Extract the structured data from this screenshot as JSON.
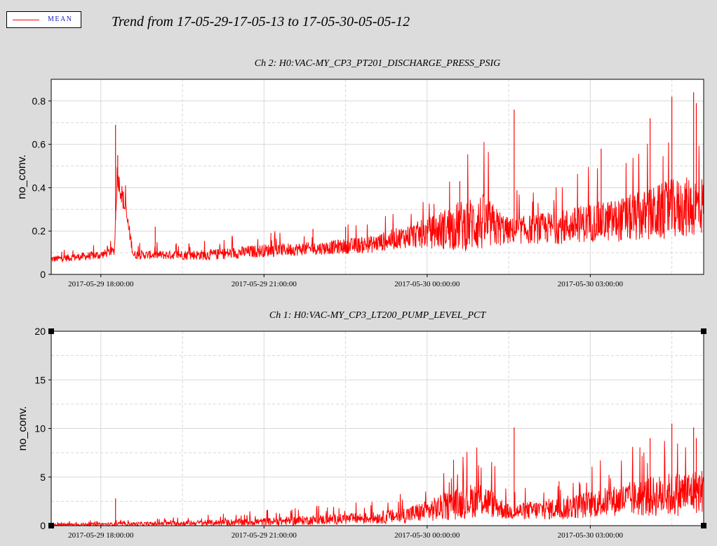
{
  "legend": {
    "label": "MEAN",
    "color": "#ff0000"
  },
  "header": {
    "title": "Trend from 17-05-29-17-05-13 to 17-05-30-05-05-12"
  },
  "chart_data": [
    {
      "type": "line",
      "title": "Ch 2: H0:VAC-MY_CP3_PT201_DISCHARGE_PRESS_PSIG",
      "ylabel": "no_conv.",
      "xlabel": "",
      "series": [
        {
          "color": "#ff0000"
        }
      ],
      "ylim": [
        0,
        0.9
      ],
      "yticks": [
        "0",
        "0.2",
        "0.4",
        "0.6",
        "0.8"
      ],
      "ytick_values": [
        0,
        0.2,
        0.4,
        0.6,
        0.8
      ],
      "xlim_hours": [
        17.087,
        29.085
      ],
      "xticks": [
        "2017-05-29 18:00:00",
        "2017-05-29 21:00:00",
        "2017-05-30 00:00:00",
        "2017-05-30 03:00:00"
      ],
      "xtick_hours": [
        18,
        21,
        24,
        27
      ],
      "grid": true,
      "hours": [
        17.09,
        18.0,
        18.25,
        18.3,
        18.45,
        18.6,
        19.0,
        20.0,
        21.0,
        22.0,
        23.0,
        23.5,
        24.0,
        24.5,
        25.0,
        25.5,
        26.0,
        26.5,
        27.0,
        27.5,
        28.0,
        28.5,
        29.08
      ],
      "mean": [
        0.07,
        0.09,
        0.11,
        0.46,
        0.3,
        0.09,
        0.09,
        0.09,
        0.11,
        0.12,
        0.14,
        0.17,
        0.19,
        0.22,
        0.24,
        0.2,
        0.21,
        0.22,
        0.24,
        0.25,
        0.27,
        0.3,
        0.32
      ],
      "spread": [
        0.015,
        0.02,
        0.02,
        0.05,
        0.05,
        0.02,
        0.02,
        0.025,
        0.03,
        0.03,
        0.04,
        0.05,
        0.07,
        0.11,
        0.14,
        0.06,
        0.07,
        0.08,
        0.09,
        0.1,
        0.12,
        0.14,
        0.14
      ],
      "spikes": [
        [
          18.27,
          0.69
        ],
        [
          18.31,
          0.55
        ],
        [
          19.0,
          0.22
        ],
        [
          21.9,
          0.21
        ],
        [
          22.5,
          0.22
        ],
        [
          24.6,
          0.43
        ],
        [
          25.6,
          0.76
        ],
        [
          27.2,
          0.58
        ],
        [
          28.1,
          0.72
        ],
        [
          28.5,
          0.82
        ],
        [
          28.9,
          0.84
        ],
        [
          28.95,
          0.79
        ]
      ]
    },
    {
      "type": "line",
      "title": "Ch 1: H0:VAC-MY_CP3_LT200_PUMP_LEVEL_PCT",
      "ylabel": "no_conv.",
      "xlabel": "",
      "series": [
        {
          "color": "#ff0000"
        }
      ],
      "ylim": [
        0,
        20
      ],
      "yticks": [
        "0",
        "5",
        "10",
        "15",
        "20"
      ],
      "ytick_values": [
        0,
        5,
        10,
        15,
        20
      ],
      "xlim_hours": [
        17.087,
        29.085
      ],
      "xticks": [
        "2017-05-29 18:00:00",
        "2017-05-29 21:00:00",
        "2017-05-30 00:00:00",
        "2017-05-30 03:00:00"
      ],
      "xtick_hours": [
        18,
        21,
        24,
        27
      ],
      "grid": true,
      "hours": [
        17.09,
        18.0,
        19.0,
        20.0,
        21.0,
        22.0,
        23.0,
        23.5,
        24.0,
        24.5,
        25.0,
        25.5,
        26.0,
        26.5,
        27.0,
        27.5,
        28.0,
        28.5,
        29.08
      ],
      "mean": [
        0.1,
        0.15,
        0.2,
        0.3,
        0.4,
        0.6,
        0.8,
        1.0,
        1.5,
        2.2,
        2.8,
        1.4,
        1.6,
        1.8,
        2.2,
        2.6,
        2.9,
        3.2,
        3.6
      ],
      "spread": [
        0.1,
        0.15,
        0.2,
        0.3,
        0.4,
        0.5,
        0.6,
        0.8,
        1.1,
        1.6,
        1.9,
        0.8,
        1.0,
        1.2,
        1.4,
        1.6,
        2.0,
        2.3,
        2.3
      ],
      "spikes": [
        [
          18.27,
          2.8
        ],
        [
          25.6,
          10.1
        ],
        [
          28.1,
          9.0
        ],
        [
          28.5,
          10.5
        ],
        [
          28.9,
          10.1
        ],
        [
          28.95,
          9.0
        ]
      ]
    }
  ]
}
